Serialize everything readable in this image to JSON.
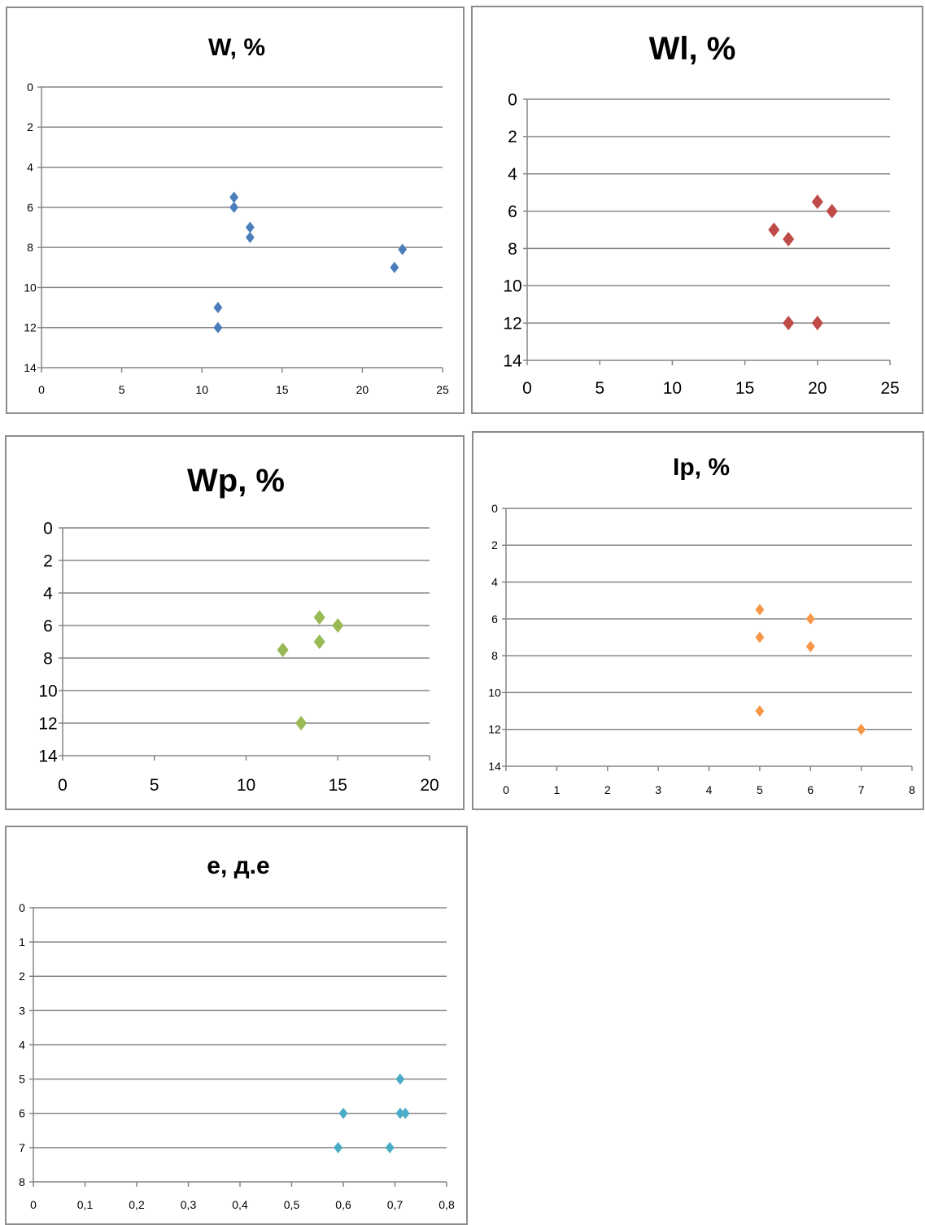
{
  "chart_data": [
    {
      "type": "scatter",
      "title": "W, %",
      "xlim": [
        0,
        25
      ],
      "ylim": [
        0,
        14
      ],
      "y_inverted": true,
      "x_ticks": [
        "0",
        "5",
        "10",
        "15",
        "20",
        "25"
      ],
      "y_ticks": [
        "0",
        "2",
        "4",
        "6",
        "8",
        "10",
        "12",
        "14"
      ],
      "grid": true,
      "marker_color": "#4a7ebb",
      "points": [
        {
          "x": 12,
          "y": 5.5
        },
        {
          "x": 12,
          "y": 6
        },
        {
          "x": 13,
          "y": 7
        },
        {
          "x": 13,
          "y": 7.5
        },
        {
          "x": 22.5,
          "y": 8.1
        },
        {
          "x": 22,
          "y": 9
        },
        {
          "x": 11,
          "y": 11
        },
        {
          "x": 11,
          "y": 12
        }
      ]
    },
    {
      "type": "scatter",
      "title": "Wl, %",
      "xlim": [
        0,
        25
      ],
      "ylim": [
        0,
        14
      ],
      "y_inverted": true,
      "x_ticks": [
        "0",
        "5",
        "10",
        "15",
        "20",
        "25"
      ],
      "y_ticks": [
        "0",
        "2",
        "4",
        "6",
        "8",
        "10",
        "12",
        "14"
      ],
      "grid": true,
      "marker_color": "#be4b48",
      "points": [
        {
          "x": 20,
          "y": 5.5
        },
        {
          "x": 21,
          "y": 6
        },
        {
          "x": 17,
          "y": 7
        },
        {
          "x": 18,
          "y": 7.5
        },
        {
          "x": 18,
          "y": 12
        },
        {
          "x": 20,
          "y": 12
        }
      ]
    },
    {
      "type": "scatter",
      "title": "Wp, %",
      "xlim": [
        0,
        20
      ],
      "ylim": [
        0,
        14
      ],
      "y_inverted": true,
      "x_ticks": [
        "0",
        "5",
        "10",
        "15",
        "20"
      ],
      "y_ticks": [
        "0",
        "2",
        "4",
        "6",
        "8",
        "10",
        "12",
        "14"
      ],
      "grid": true,
      "marker_color": "#98b954",
      "points": [
        {
          "x": 14,
          "y": 5.5
        },
        {
          "x": 15,
          "y": 6
        },
        {
          "x": 14,
          "y": 7
        },
        {
          "x": 12,
          "y": 7.5
        },
        {
          "x": 13,
          "y": 12
        }
      ]
    },
    {
      "type": "scatter",
      "title": "Ip, %",
      "xlim": [
        0,
        8
      ],
      "ylim": [
        0,
        14
      ],
      "y_inverted": true,
      "x_ticks": [
        "0",
        "1",
        "2",
        "3",
        "4",
        "5",
        "6",
        "7",
        "8"
      ],
      "y_ticks": [
        "0",
        "2",
        "4",
        "6",
        "8",
        "10",
        "12",
        "14"
      ],
      "grid": true,
      "marker_color": "#f79646",
      "points": [
        {
          "x": 5,
          "y": 5.5
        },
        {
          "x": 6,
          "y": 6
        },
        {
          "x": 5,
          "y": 7
        },
        {
          "x": 6,
          "y": 7.5
        },
        {
          "x": 5,
          "y": 11
        },
        {
          "x": 7,
          "y": 12
        }
      ]
    },
    {
      "type": "scatter",
      "title": "e, д.е",
      "xlim": [
        0,
        0.8
      ],
      "ylim": [
        0,
        8
      ],
      "y_inverted": true,
      "x_ticks": [
        "0",
        "0,1",
        "0,2",
        "0,3",
        "0,4",
        "0,5",
        "0,6",
        "0,7",
        "0,8"
      ],
      "y_ticks": [
        "0",
        "1",
        "2",
        "3",
        "4",
        "5",
        "6",
        "7",
        "8"
      ],
      "grid": true,
      "marker_color": "#4bacc6",
      "points": [
        {
          "x": 0.71,
          "y": 5
        },
        {
          "x": 0.6,
          "y": 6
        },
        {
          "x": 0.71,
          "y": 6
        },
        {
          "x": 0.72,
          "y": 6
        },
        {
          "x": 0.59,
          "y": 7
        },
        {
          "x": 0.69,
          "y": 7
        }
      ]
    }
  ]
}
